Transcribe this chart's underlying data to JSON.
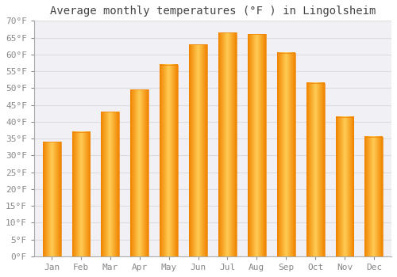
{
  "title": "Average monthly temperatures (°F ) in Lingolsheim",
  "months": [
    "Jan",
    "Feb",
    "Mar",
    "Apr",
    "May",
    "Jun",
    "Jul",
    "Aug",
    "Sep",
    "Oct",
    "Nov",
    "Dec"
  ],
  "values": [
    34,
    37,
    43,
    49.5,
    57,
    63,
    66.5,
    66,
    60.5,
    51.5,
    41.5,
    35.5
  ],
  "bar_color_main": "#FFA500",
  "bar_color_light": "#FFD080",
  "bar_color_dark": "#F08000",
  "background_color": "#FFFFFF",
  "plot_bg_color": "#F0F0F5",
  "grid_color": "#DDDDDD",
  "ylim": [
    0,
    70
  ],
  "yticks": [
    0,
    5,
    10,
    15,
    20,
    25,
    30,
    35,
    40,
    45,
    50,
    55,
    60,
    65,
    70
  ],
  "title_fontsize": 10,
  "tick_fontsize": 8,
  "tick_color": "#888888",
  "spine_color": "#AAAAAA",
  "title_color": "#444444"
}
